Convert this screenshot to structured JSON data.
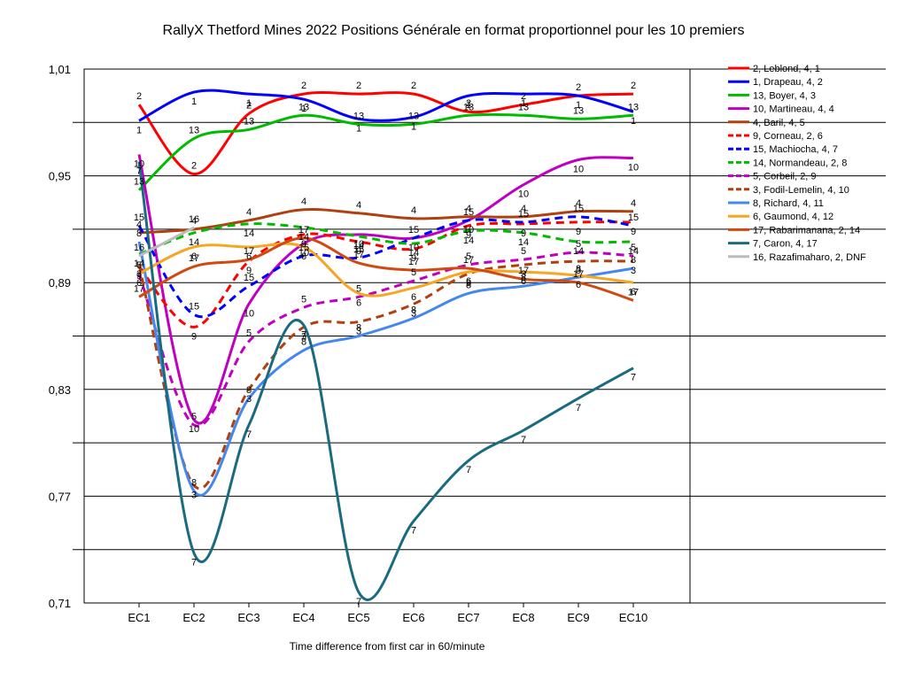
{
  "chart_data": {
    "type": "line",
    "title": "RallyX Thetford Mines 2022  Positions Générale en format proportionnel pour les 10 premiers",
    "xlabel": "Time difference from first car in 60/minute",
    "ylabel": "",
    "categories": [
      "EC1",
      "EC2",
      "EC3",
      "EC4",
      "EC5",
      "EC6",
      "EC7",
      "EC8",
      "EC9",
      "EC10"
    ],
    "ylim": [
      0.71,
      1.01
    ],
    "yticks": [
      "0,71",
      "0,77",
      "0,83",
      "0,89",
      "0,95",
      "1,01"
    ],
    "ytick_values": [
      0.71,
      0.77,
      0.83,
      0.89,
      0.95,
      1.01
    ],
    "grid": "horizontal",
    "legend_position": "right",
    "series": [
      {
        "name": "2, Leblond, 4, 1",
        "label": "2",
        "color": "#ff0000",
        "dash": "solid",
        "values": [
          0.99,
          0.951,
          0.985,
          0.996,
          0.996,
          0.996,
          0.986,
          0.99,
          0.995,
          0.996
        ]
      },
      {
        "name": "1, Drapeau, 4, 2",
        "label": "1",
        "color": "#0000ff",
        "dash": "solid",
        "values": [
          0.981,
          0.997,
          0.996,
          0.993,
          0.982,
          0.983,
          0.995,
          0.996,
          0.995,
          0.986
        ]
      },
      {
        "name": "13, Boyer, 4, 3",
        "label": "13",
        "color": "#00bb00",
        "dash": "solid",
        "values": [
          0.942,
          0.971,
          0.976,
          0.984,
          0.979,
          0.979,
          0.984,
          0.984,
          0.982,
          0.984
        ]
      },
      {
        "name": "10, Martineau, 4, 4",
        "label": "10",
        "color": "#c000c0",
        "dash": "solid",
        "values": [
          0.962,
          0.813,
          0.878,
          0.912,
          0.917,
          0.915,
          0.925,
          0.945,
          0.959,
          0.96
        ]
      },
      {
        "name": "4, Baril, 4, 5",
        "label": "4",
        "color": "#b04010",
        "dash": "solid",
        "values": [
          0.918,
          0.92,
          0.925,
          0.931,
          0.929,
          0.926,
          0.927,
          0.927,
          0.93,
          0.93
        ]
      },
      {
        "name": "9, Corneau, 2, 6",
        "label": "9",
        "color": "#ff0000",
        "dash": "dashed",
        "values": [
          0.899,
          0.865,
          0.902,
          0.917,
          0.913,
          0.909,
          0.922,
          0.923,
          0.924,
          0.924
        ]
      },
      {
        "name": "15, Machiocha, 4, 7",
        "label": "15",
        "color": "#0000ff",
        "dash": "dashed",
        "values": [
          0.922,
          0.872,
          0.888,
          0.905,
          0.904,
          0.915,
          0.925,
          0.924,
          0.927,
          0.922
        ]
      },
      {
        "name": "14, Normandeau, 2, 8",
        "label": "14",
        "color": "#00bb00",
        "dash": "dashed",
        "values": [
          0.906,
          0.918,
          0.923,
          0.921,
          0.916,
          0.912,
          0.919,
          0.918,
          0.913,
          0.913
        ]
      },
      {
        "name": "5, Corbeil, 2, 9",
        "label": "5",
        "color": "#c000c0",
        "dash": "dashed",
        "values": [
          0.895,
          0.81,
          0.857,
          0.876,
          0.882,
          0.891,
          0.9,
          0.903,
          0.907,
          0.905
        ]
      },
      {
        "name": "3, Fodil-Lemelin, 4, 10",
        "label": "3",
        "color": "#b04010",
        "dash": "dashed",
        "values": [
          0.9,
          0.776,
          0.83,
          0.865,
          0.868,
          0.878,
          0.895,
          0.9,
          0.902,
          0.902
        ]
      },
      {
        "name": "8, Richard, 4, 11",
        "label": "8",
        "color": "#4488ee",
        "dash": "solid",
        "values": [
          0.913,
          0.773,
          0.825,
          0.852,
          0.86,
          0.87,
          0.884,
          0.888,
          0.893,
          0.898
        ]
      },
      {
        "name": "6, Gaumond, 4, 12",
        "label": "6",
        "color": "#f5a623",
        "dash": "solid",
        "values": [
          0.895,
          0.91,
          0.91,
          0.91,
          0.884,
          0.887,
          0.896,
          0.896,
          0.894,
          0.89
        ]
      },
      {
        "name": "17, Rabarimanana, 2, 14",
        "label": "17",
        "color": "#d04a10",
        "dash": "solid",
        "values": [
          0.882,
          0.899,
          0.903,
          0.915,
          0.901,
          0.897,
          0.898,
          0.892,
          0.89,
          0.88
        ]
      },
      {
        "name": "7, Caron, 4, 17",
        "label": "7",
        "color": "#1a6b80",
        "dash": "solid",
        "values": [
          0.958,
          0.738,
          0.81,
          0.866,
          0.716,
          0.756,
          0.79,
          0.807,
          0.825,
          0.842
        ]
      },
      {
        "name": "16, Razafimaharo, 2, DNF",
        "label": "16",
        "color": "#bbbbbb",
        "dash": "solid",
        "values": [
          0.905,
          0.921,
          null,
          null,
          null,
          null,
          null,
          null,
          null,
          null
        ]
      }
    ]
  }
}
